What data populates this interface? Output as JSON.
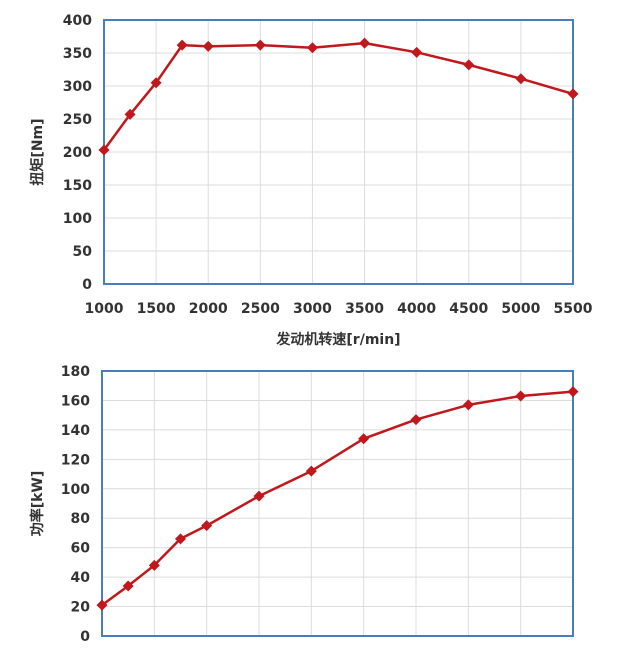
{
  "chart_data": [
    {
      "type": "line",
      "xlabel": "发动机转速[r/min]",
      "ylabel": "扭矩[Nm]",
      "xlim": [
        1000,
        5500
      ],
      "ylim": [
        0,
        400
      ],
      "x_ticks": [
        "1000",
        "1500",
        "2000",
        "2500",
        "3000",
        "3500",
        "4000",
        "4500",
        "5000",
        "5500"
      ],
      "y_ticks": [
        "0",
        "50",
        "100",
        "150",
        "200",
        "250",
        "300",
        "350",
        "400"
      ],
      "grid": true,
      "series": [
        {
          "points": [
            {
              "x": 1000,
              "y": 203
            },
            {
              "x": 1250,
              "y": 257
            },
            {
              "x": 1500,
              "y": 305
            },
            {
              "x": 1750,
              "y": 362
            },
            {
              "x": 2000,
              "y": 360
            },
            {
              "x": 2500,
              "y": 362
            },
            {
              "x": 3000,
              "y": 358
            },
            {
              "x": 3500,
              "y": 365
            },
            {
              "x": 4000,
              "y": 351
            },
            {
              "x": 4500,
              "y": 332
            },
            {
              "x": 5000,
              "y": 311
            },
            {
              "x": 5500,
              "y": 288
            }
          ]
        }
      ],
      "colors": {
        "series": "#C0181C",
        "frame": "#4A7EBB",
        "grid": "#DCDCDC"
      }
    },
    {
      "type": "line",
      "ylabel": "功率[kW]",
      "xlim": [
        1000,
        5500
      ],
      "ylim": [
        0,
        180
      ],
      "y_ticks": [
        "0",
        "20",
        "40",
        "60",
        "80",
        "100",
        "120",
        "140",
        "160",
        "180"
      ],
      "grid": true,
      "series": [
        {
          "points": [
            {
              "x": 1000,
              "y": 21
            },
            {
              "x": 1250,
              "y": 34
            },
            {
              "x": 1500,
              "y": 48
            },
            {
              "x": 1750,
              "y": 66
            },
            {
              "x": 2000,
              "y": 75
            },
            {
              "x": 2500,
              "y": 95
            },
            {
              "x": 3000,
              "y": 112
            },
            {
              "x": 3500,
              "y": 134
            },
            {
              "x": 4000,
              "y": 147
            },
            {
              "x": 4500,
              "y": 157
            },
            {
              "x": 5000,
              "y": 163
            },
            {
              "x": 5500,
              "y": 166
            }
          ]
        }
      ],
      "colors": {
        "series": "#C0181C",
        "frame": "#4A7EBB",
        "grid": "#DCDCDC"
      }
    }
  ]
}
